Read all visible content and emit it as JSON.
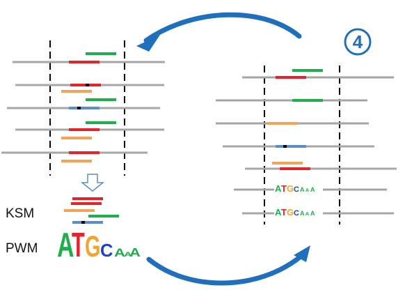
{
  "step_number": "4",
  "labels": {
    "ksm": "KSM",
    "pwm": "PWM"
  },
  "motif_letters": [
    "A",
    "T",
    "G",
    "C",
    "A",
    "A",
    "A"
  ],
  "colors": {
    "sequence": "#a6a6a6",
    "red": "#e3242b",
    "green": "#1eae4b",
    "orange": "#f3a25a",
    "blue": "#5b8dc9",
    "arrow": "#1f6fbd",
    "letter_A": "#1eae4b",
    "letter_T": "#e3242b",
    "letter_G": "#f0a530",
    "letter_C": "#1f3fd0"
  },
  "icons": [
    "curved-arrow-icon",
    "down-arrow-icon",
    "step-badge"
  ]
}
